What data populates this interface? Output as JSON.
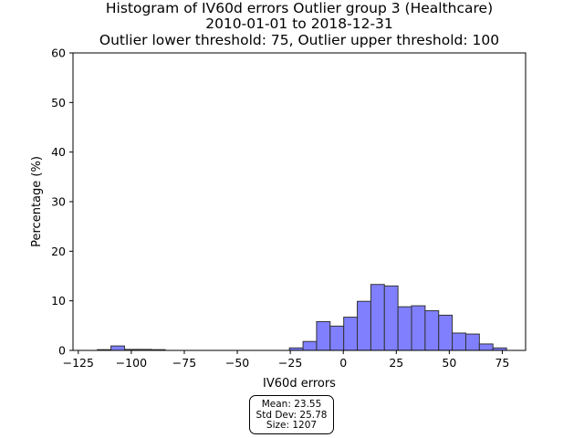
{
  "chart_data": {
    "type": "bar",
    "title": [
      "Histogram of IV60d errors Outlier group 3 (Healthcare)",
      "2010-01-01 to 2018-12-31",
      "Outlier lower threshold: 75, Outlier upper threshold: 100"
    ],
    "xlabel": "IV60d errors",
    "ylabel": "Percentage (%)",
    "xlim": [
      -127.5,
      86
    ],
    "ylim": [
      0,
      60
    ],
    "xticks": [
      -125,
      -100,
      -75,
      -50,
      -25,
      0,
      25,
      50,
      75
    ],
    "xtick_labels": [
      "−125",
      "−100",
      "−75",
      "−50",
      "−25",
      "0",
      "25",
      "50",
      "75"
    ],
    "yticks": [
      0,
      10,
      20,
      30,
      40,
      50,
      60
    ],
    "ytick_labels": [
      "0",
      "10",
      "20",
      "30",
      "40",
      "50",
      "60"
    ],
    "grid": false,
    "bar_color": "#8080ff",
    "edge_color": "#333333",
    "bins": [
      {
        "left": -116.0,
        "right": -109.6,
        "value": 0.15
      },
      {
        "left": -109.6,
        "right": -103.2,
        "value": 0.9
      },
      {
        "left": -103.2,
        "right": -96.8,
        "value": 0.2
      },
      {
        "left": -96.8,
        "right": -90.4,
        "value": 0.2
      },
      {
        "left": -90.4,
        "right": -84.0,
        "value": 0.15
      },
      {
        "left": -25.4,
        "right": -19.0,
        "value": 0.5
      },
      {
        "left": -19.0,
        "right": -12.6,
        "value": 1.8
      },
      {
        "left": -12.6,
        "right": -6.2,
        "value": 5.8
      },
      {
        "left": -6.2,
        "right": 0.2,
        "value": 4.9
      },
      {
        "left": 0.2,
        "right": 6.6,
        "value": 6.7
      },
      {
        "left": 6.6,
        "right": 13.0,
        "value": 9.9
      },
      {
        "left": 13.0,
        "right": 19.4,
        "value": 13.3
      },
      {
        "left": 19.4,
        "right": 25.8,
        "value": 13.0
      },
      {
        "left": 25.8,
        "right": 32.2,
        "value": 8.8
      },
      {
        "left": 32.2,
        "right": 38.6,
        "value": 9.0
      },
      {
        "left": 38.6,
        "right": 45.0,
        "value": 8.0
      },
      {
        "left": 45.0,
        "right": 51.4,
        "value": 7.1
      },
      {
        "left": 51.4,
        "right": 57.8,
        "value": 3.5
      },
      {
        "left": 57.8,
        "right": 64.2,
        "value": 3.3
      },
      {
        "left": 64.2,
        "right": 70.6,
        "value": 1.3
      },
      {
        "left": 70.6,
        "right": 77.0,
        "value": 0.5
      }
    ],
    "stats": {
      "mean": "Mean: 23.55",
      "std": "Std Dev: 25.78",
      "size": "Size: 1207"
    }
  }
}
